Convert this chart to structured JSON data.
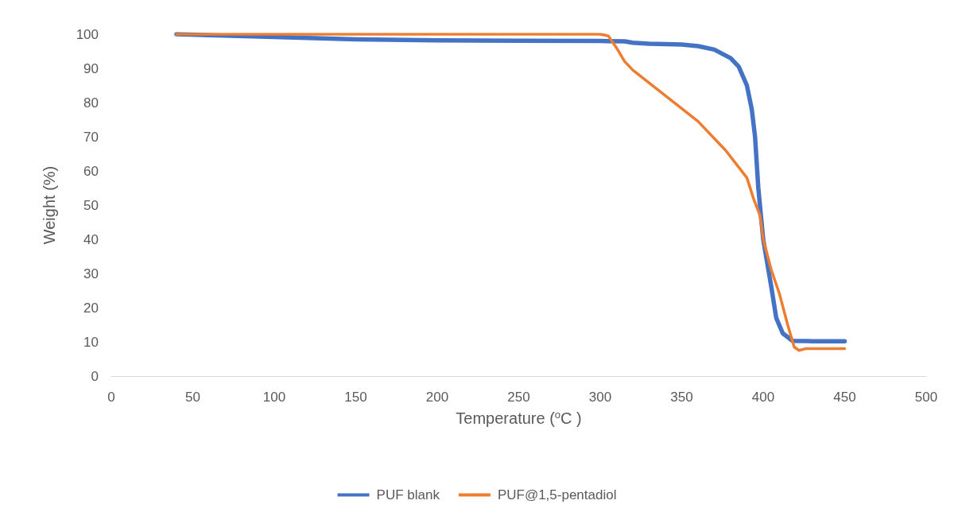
{
  "chart_data": {
    "type": "line",
    "xlabel": "Temperature ($^{o}$C )",
    "ylabel": "Weight (%)",
    "xlim": [
      0,
      500
    ],
    "xticks": [
      0,
      50,
      100,
      150,
      200,
      250,
      300,
      350,
      400,
      450,
      500
    ],
    "ylim": [
      0,
      100
    ],
    "yticks": [
      0,
      10,
      20,
      30,
      40,
      50,
      60,
      70,
      80,
      90,
      100
    ],
    "grid": false,
    "legend": "bottom",
    "marker": "none",
    "line_style": "solid",
    "series": [
      {
        "name": "PUF blank",
        "color": "#4472c4",
        "x": [
          40,
          100,
          150,
          200,
          250,
          300,
          315,
          320,
          330,
          350,
          360,
          370,
          380,
          385,
          390,
          393,
          395,
          397,
          400,
          405,
          408,
          412,
          418,
          430,
          450
        ],
        "values": [
          100,
          99.2,
          98.5,
          98.2,
          98.1,
          98,
          97.9,
          97.5,
          97.2,
          97,
          96.5,
          95.5,
          93,
          90.5,
          85,
          78,
          70,
          55,
          40,
          26,
          17,
          12.5,
          10.3,
          10.2,
          10.2
        ]
      },
      {
        "name": "PUF@1,5-pentadiol",
        "color": "#ed7d31",
        "x": [
          40,
          100,
          200,
          300,
          305,
          310,
          315,
          320,
          340,
          360,
          377,
          390,
          394,
          398,
          400,
          405,
          410,
          415,
          419,
          422,
          426,
          450
        ],
        "values": [
          100,
          100,
          100,
          100,
          99.5,
          96,
          92,
          89.5,
          82,
          74.5,
          66,
          58,
          52,
          47,
          40,
          31,
          24,
          15,
          8.5,
          7.5,
          8,
          8
        ]
      }
    ]
  }
}
